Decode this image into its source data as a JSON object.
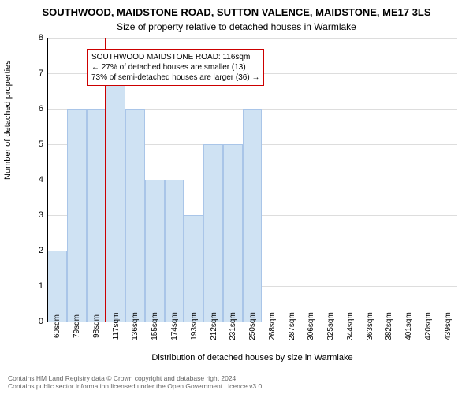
{
  "title_line1": "SOUTHWOOD, MAIDSTONE ROAD, SUTTON VALENCE, MAIDSTONE, ME17 3LS",
  "title_line2": "Size of property relative to detached houses in Warmlake",
  "ylabel": "Number of detached properties",
  "xlabel": "Distribution of detached houses by size in Warmlake",
  "chart": {
    "type": "bar",
    "ylim": [
      0,
      8
    ],
    "ytick_step": 1,
    "background_color": "#ffffff",
    "grid_color": "#dddddd",
    "axis_color": "#000000",
    "bar_color": "#cfe2f3",
    "bar_border_color": "#a9c5e8",
    "ref_line_color": "#cc0000",
    "legend_border_color": "#cc0000",
    "ref_line_x": 116,
    "label_fontsize": 11,
    "title_fontsize": 13,
    "tick_fontsize": 10,
    "categories": [
      "60sqm",
      "79sqm",
      "98sqm",
      "117sqm",
      "136sqm",
      "155sqm",
      "174sqm",
      "193sqm",
      "212sqm",
      "231sqm",
      "250sqm",
      "268sqm",
      "287sqm",
      "306sqm",
      "325sqm",
      "344sqm",
      "363sqm",
      "382sqm",
      "401sqm",
      "420sqm",
      "439sqm"
    ],
    "x_min": 60,
    "x_max": 439,
    "values": [
      2,
      6,
      6,
      7,
      6,
      4,
      4,
      3,
      5,
      5,
      6,
      0,
      0,
      0,
      0,
      0,
      0,
      0,
      0,
      0,
      0
    ]
  },
  "legend": {
    "line1": "SOUTHWOOD MAIDSTONE ROAD: 116sqm",
    "line2": "← 27% of detached houses are smaller (13)",
    "line3": "73% of semi-detached houses are larger (36) →"
  },
  "footer": {
    "line1": "Contains HM Land Registry data © Crown copyright and database right 2024.",
    "line2": "Contains public sector information licensed under the Open Government Licence v3.0."
  }
}
